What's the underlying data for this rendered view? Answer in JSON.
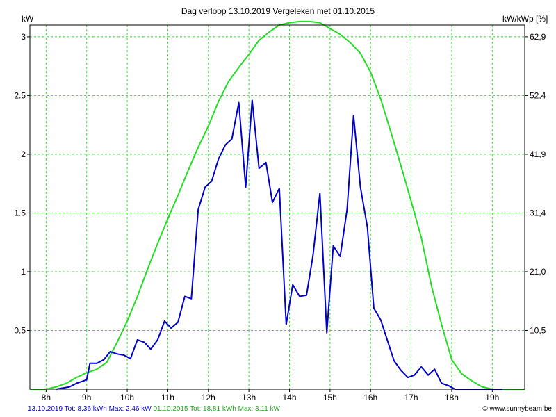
{
  "header": {
    "title": "Dag  verloop 13.10.2019   Vergeleken met 01.10.2015",
    "left_unit": "kW",
    "right_unit": "kW/kWp [%]"
  },
  "footer": {
    "series1_summary": "13.10.2019 Tot: 8,36 kWh Max: 2,46 kW",
    "series2_summary": "01.10.2015 Tot: 18,81 kWh Max: 3,11 kW",
    "credit": "© www.sunnybeam.be"
  },
  "colors": {
    "grid": "#33dd33",
    "series1": "#0000cc",
    "series2": "#22dd22",
    "axis": "#000000"
  },
  "chart_data": {
    "type": "line",
    "title": "Dag  verloop 13.10.2019   Vergeleken met 01.10.2015",
    "ylabel": "kW",
    "ylabel_right": "kW/kWp [%]",
    "xlim": [
      7.6,
      19.8
    ],
    "ylim": [
      0,
      3.1
    ],
    "grid": true,
    "x_ticks": [
      {
        "x": 8,
        "label": "8h"
      },
      {
        "x": 9,
        "label": "9h"
      },
      {
        "x": 10,
        "label": "10h"
      },
      {
        "x": 11,
        "label": "11h"
      },
      {
        "x": 12,
        "label": "12h"
      },
      {
        "x": 13,
        "label": "13h"
      },
      {
        "x": 14,
        "label": "14h"
      },
      {
        "x": 15,
        "label": "15h"
      },
      {
        "x": 16,
        "label": "16h"
      },
      {
        "x": 17,
        "label": "17h"
      },
      {
        "x": 18,
        "label": "18h"
      },
      {
        "x": 19,
        "label": "19h"
      }
    ],
    "y_ticks": [
      {
        "y": 0.5,
        "label": "0.5"
      },
      {
        "y": 1,
        "label": "1"
      },
      {
        "y": 1.5,
        "label": "1.5"
      },
      {
        "y": 2,
        "label": "2"
      },
      {
        "y": 2.5,
        "label": "2.5"
      },
      {
        "y": 3,
        "label": "3"
      }
    ],
    "y_ticks_right": [
      {
        "y": 0.5,
        "label": "10,5"
      },
      {
        "y": 1,
        "label": "21,0"
      },
      {
        "y": 1.5,
        "label": "31,4"
      },
      {
        "y": 2,
        "label": "41,9"
      },
      {
        "y": 2.5,
        "label": "52,4"
      },
      {
        "y": 3,
        "label": "62,9"
      }
    ],
    "series": [
      {
        "color": "#0000cc",
        "x": [
          8.25,
          8.58,
          8.75,
          8.92,
          9.0,
          9.08,
          9.25,
          9.42,
          9.58,
          9.75,
          9.92,
          10.08,
          10.25,
          10.42,
          10.58,
          10.75,
          10.92,
          11.08,
          11.25,
          11.42,
          11.58,
          11.75,
          11.92,
          12.08,
          12.25,
          12.42,
          12.58,
          12.75,
          12.92,
          13.08,
          13.25,
          13.42,
          13.58,
          13.75,
          13.92,
          14.08,
          14.25,
          14.42,
          14.58,
          14.75,
          14.92,
          15.08,
          15.25,
          15.42,
          15.58,
          15.75,
          15.92,
          16.08,
          16.25,
          16.42,
          16.58,
          16.75,
          16.92,
          17.08,
          17.25,
          17.42,
          17.58,
          17.75,
          17.92,
          18.08,
          18.25,
          18.42,
          18.58,
          18.75,
          18.92,
          19.08,
          19.25
        ],
        "y": [
          0.0,
          0.02,
          0.05,
          0.07,
          0.08,
          0.22,
          0.22,
          0.25,
          0.32,
          0.3,
          0.29,
          0.26,
          0.42,
          0.4,
          0.34,
          0.42,
          0.58,
          0.52,
          0.57,
          0.79,
          0.77,
          1.53,
          1.72,
          1.77,
          1.96,
          2.08,
          2.13,
          2.44,
          1.72,
          2.46,
          1.88,
          1.93,
          1.59,
          1.71,
          0.55,
          0.89,
          0.79,
          0.8,
          1.14,
          1.67,
          0.48,
          1.22,
          1.13,
          1.53,
          2.33,
          1.72,
          1.38,
          0.69,
          0.59,
          0.41,
          0.24,
          0.16,
          0.1,
          0.12,
          0.19,
          0.12,
          0.17,
          0.05,
          0.03,
          0.0,
          0.0,
          0.0,
          0.0,
          0.0,
          0.0,
          0.0,
          0.0
        ]
      },
      {
        "color": "#22dd22",
        "x": [
          7.6,
          8.0,
          8.25,
          8.5,
          8.75,
          9.0,
          9.25,
          9.5,
          9.75,
          10.0,
          10.25,
          10.5,
          10.75,
          11.0,
          11.25,
          11.5,
          11.75,
          12.0,
          12.25,
          12.5,
          12.75,
          13.0,
          13.25,
          13.5,
          13.75,
          14.0,
          14.25,
          14.5,
          14.75,
          15.0,
          15.25,
          15.5,
          15.75,
          16.0,
          16.25,
          16.5,
          16.75,
          17.0,
          17.25,
          17.5,
          17.75,
          18.0,
          18.25,
          18.5,
          18.75,
          19.0,
          19.25,
          19.5,
          19.8
        ],
        "y": [
          0.0,
          0.0,
          0.02,
          0.05,
          0.1,
          0.14,
          0.17,
          0.23,
          0.4,
          0.58,
          0.79,
          1.02,
          1.24,
          1.45,
          1.65,
          1.86,
          2.06,
          2.24,
          2.45,
          2.62,
          2.74,
          2.85,
          2.97,
          3.04,
          3.1,
          3.12,
          3.13,
          3.13,
          3.12,
          3.07,
          3.02,
          2.95,
          2.86,
          2.7,
          2.47,
          2.19,
          1.9,
          1.6,
          1.29,
          0.88,
          0.55,
          0.25,
          0.13,
          0.07,
          0.02,
          0.0,
          0.0,
          0.0,
          0.0
        ]
      }
    ]
  }
}
